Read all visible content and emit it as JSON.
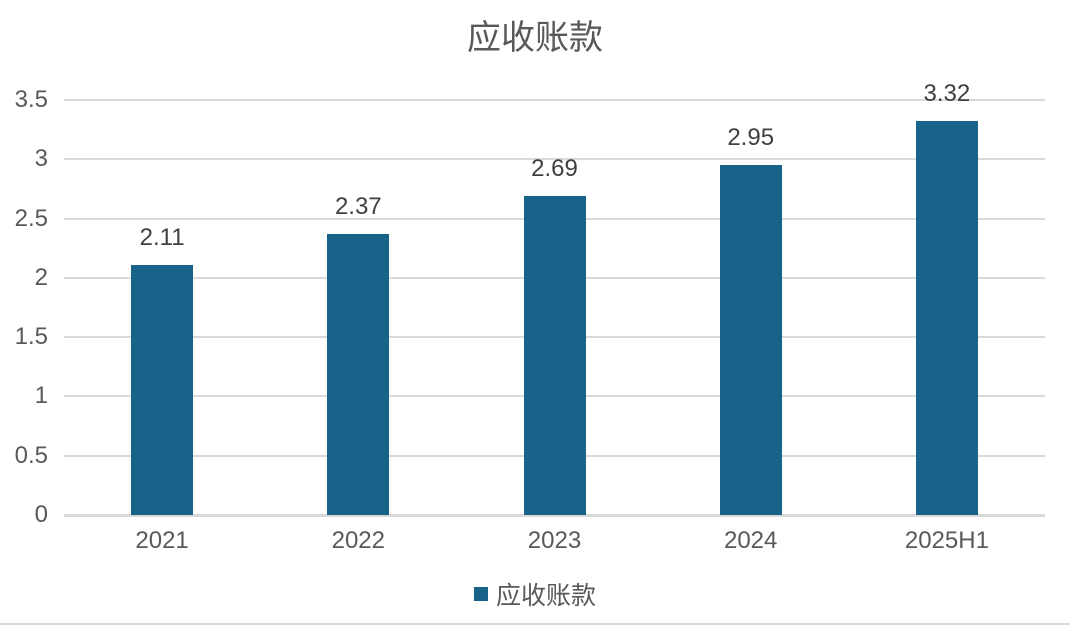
{
  "colors": {
    "bar": "#186389",
    "gridline": "#D9D9D9",
    "axis_line": "#D9D9D9",
    "title_text": "#595959",
    "tick_text": "#595959",
    "value_label_text": "#404040"
  },
  "legend": {
    "marker": "square-icon",
    "label": "应收账款"
  },
  "chart_data": {
    "type": "bar",
    "title": "应收账款",
    "categories": [
      "2021",
      "2022",
      "2023",
      "2024",
      "2025H1"
    ],
    "values": [
      2.11,
      2.37,
      2.69,
      2.95,
      3.32
    ],
    "value_labels": [
      "2.11",
      "2.37",
      "2.69",
      "2.95",
      "3.32"
    ],
    "series_name": "应收账款",
    "xlabel": "",
    "ylabel": "",
    "ylim": [
      0,
      3.5
    ],
    "ytick_step": 0.5,
    "ytick_labels": [
      "0",
      "0.5",
      "1",
      "1.5",
      "2",
      "2.5",
      "3",
      "3.5"
    ],
    "grid": "horizontal",
    "legend_position": "bottom"
  }
}
